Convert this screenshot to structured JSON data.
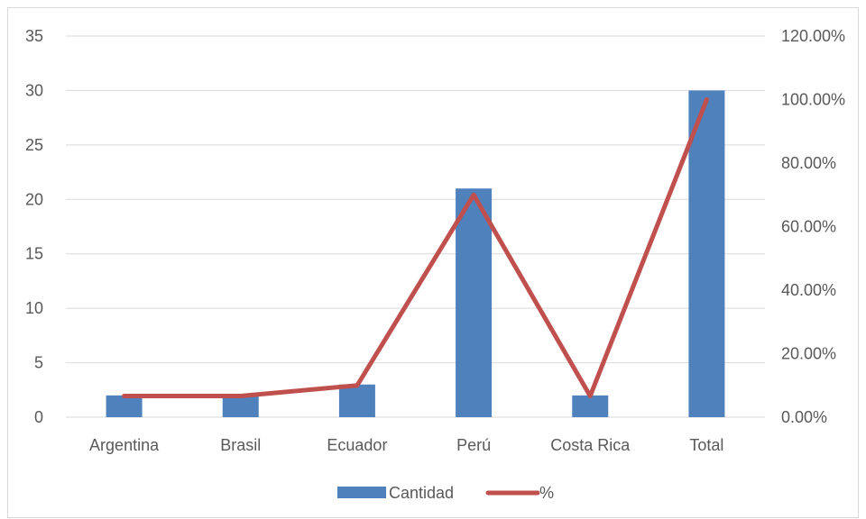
{
  "chart_data": {
    "type": "bar",
    "categories": [
      "Argentina",
      "Brasil",
      "Ecuador",
      "Perú",
      "Costa Rica",
      "Total"
    ],
    "series": [
      {
        "name": "Cantidad",
        "type": "bar",
        "axis": "left",
        "values": [
          2,
          2,
          3,
          21,
          2,
          30
        ]
      },
      {
        "name": "%",
        "type": "line",
        "axis": "right",
        "values": [
          0.0667,
          0.0667,
          0.1,
          0.7,
          0.0667,
          1.0
        ]
      }
    ],
    "y_left": {
      "ylim": [
        0,
        35
      ],
      "ticks": [
        "0",
        "5",
        "10",
        "15",
        "20",
        "25",
        "30",
        "35"
      ],
      "tick_values": [
        0,
        5,
        10,
        15,
        20,
        25,
        30,
        35
      ]
    },
    "y_right": {
      "ylim": [
        0,
        1.2
      ],
      "ticks": [
        "0.00%",
        "20.00%",
        "40.00%",
        "60.00%",
        "80.00%",
        "100.00%",
        "120.00%"
      ],
      "tick_values": [
        0,
        0.2,
        0.4,
        0.6,
        0.8,
        1.0,
        1.2
      ]
    },
    "grid": true,
    "legend_position": "bottom",
    "colors": {
      "bar": "#4f81bd",
      "line": "#c0504d",
      "grid": "#d9d9d9",
      "text": "#595959"
    }
  }
}
